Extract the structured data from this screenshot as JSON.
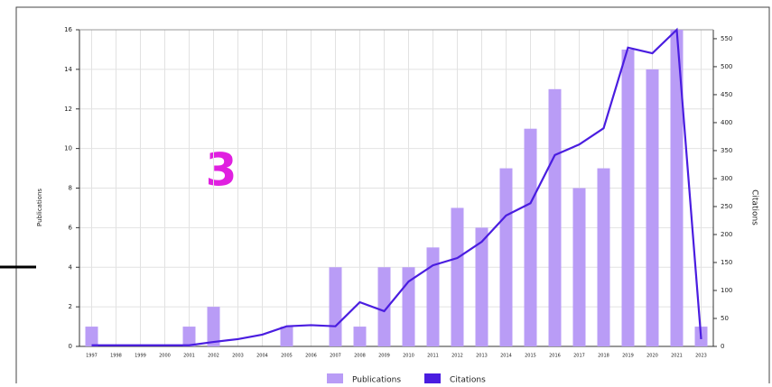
{
  "chart_data": {
    "type": "bar-line",
    "annotation": "3",
    "ylabel": "Publications",
    "y2label": "Citations",
    "categories": [
      "1997",
      "1998",
      "1999",
      "2000",
      "2001",
      "2002",
      "2003",
      "2004",
      "2005",
      "2006",
      "2007",
      "2008",
      "2009",
      "2010",
      "2011",
      "2012",
      "2013",
      "2014",
      "2015",
      "2016",
      "2017",
      "2018",
      "2019",
      "2020",
      "2021",
      "2023"
    ],
    "series": [
      {
        "name": "Publications",
        "color": "#b99cf6",
        "kind": "bar",
        "values": [
          1,
          0,
          0,
          0,
          1,
          2,
          0,
          0,
          1,
          0,
          4,
          1,
          4,
          4,
          5,
          7,
          6,
          9,
          11,
          13,
          8,
          9,
          15,
          14,
          16,
          1
        ]
      },
      {
        "name": "Citations",
        "color": "#4a1de0",
        "kind": "line",
        "axis": "y2",
        "values": [
          2,
          2,
          2,
          2,
          2,
          8,
          13,
          21,
          36,
          38,
          36,
          79,
          63,
          116,
          145,
          158,
          187,
          234,
          256,
          342,
          361,
          390,
          534,
          524,
          566,
          13
        ]
      }
    ],
    "ylim": [
      0,
      16
    ],
    "yticks": [
      0,
      2,
      4,
      6,
      8,
      10,
      12,
      14,
      16
    ],
    "y2lim": [
      0,
      566
    ],
    "y2ticks": [
      0,
      50,
      100,
      150,
      200,
      250,
      300,
      350,
      400,
      450,
      500,
      550
    ],
    "grid": true
  }
}
